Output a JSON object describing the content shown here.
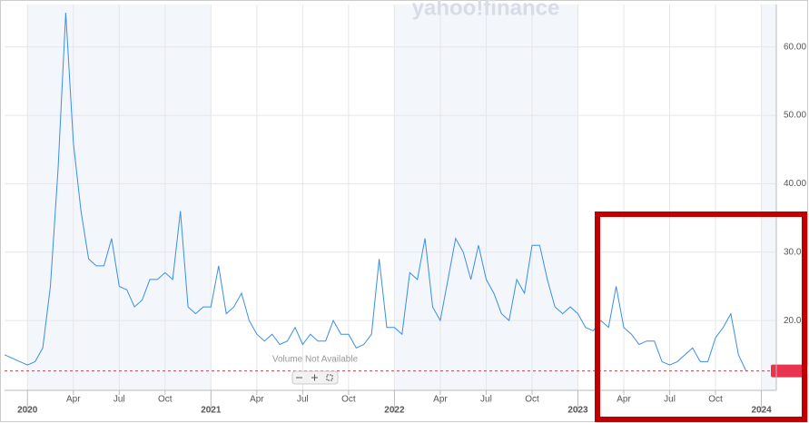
{
  "chart_data": {
    "type": "line",
    "watermark": "yahoo!finance",
    "note": "Volume Not Available",
    "color": "#3a8ee6",
    "categories": [
      null,
      null,
      null,
      "2020",
      null,
      null,
      null,
      null,
      null,
      "Apr",
      null,
      null,
      null,
      null,
      null,
      "Jul",
      null,
      null,
      null,
      null,
      null,
      "Oct",
      null,
      null,
      null,
      null,
      null,
      "2021",
      null,
      null,
      null,
      null,
      null,
      "Apr",
      null,
      null,
      null,
      null,
      null,
      "Jul",
      null,
      null,
      null,
      null,
      null,
      "Oct",
      null,
      null,
      null,
      null,
      null,
      "2022",
      null,
      null,
      null,
      null,
      null,
      "Apr",
      null,
      null,
      null,
      null,
      null,
      "Jul",
      null,
      null,
      null,
      null,
      null,
      "Oct",
      null,
      null,
      null,
      null,
      null,
      "2023",
      null,
      null,
      null,
      null,
      null,
      "Apr",
      null,
      null,
      null,
      null,
      null,
      "Jul",
      null,
      null,
      null,
      null,
      null,
      "Oct",
      null,
      null,
      null,
      null,
      null,
      "2024"
    ],
    "values": [
      15,
      14.5,
      14,
      13.5,
      14,
      16,
      25,
      42,
      65,
      46,
      36,
      29,
      28,
      28,
      32,
      25,
      24.5,
      22,
      23,
      26,
      26,
      27,
      26,
      36,
      22,
      21,
      22,
      22,
      28,
      21,
      22,
      24,
      20,
      18,
      17,
      18,
      16.5,
      17,
      19,
      16.5,
      18,
      17,
      17,
      20,
      18,
      18,
      16,
      16.5,
      18,
      29,
      19,
      19,
      18,
      27,
      26,
      32,
      22,
      20,
      26,
      32,
      30,
      26,
      31,
      26,
      24,
      21,
      20,
      26,
      24,
      31,
      31,
      26,
      22,
      21,
      22,
      21,
      19,
      18.5,
      20,
      19,
      25,
      19,
      18,
      16.5,
      17,
      17,
      14,
      13.5,
      14,
      15,
      16,
      14,
      14,
      17.5,
      19,
      21,
      15,
      12.63,
      null,
      null
    ],
    "last_price": 12.63,
    "ylim": [
      9.8,
      66.2
    ],
    "yticks": [
      {
        "value": 20,
        "label": "20.00"
      },
      {
        "value": 30,
        "label": "30.00"
      },
      {
        "value": 40,
        "label": "40.00"
      },
      {
        "value": 50,
        "label": "50.00"
      },
      {
        "value": 60,
        "label": "60.00"
      }
    ],
    "grid": true
  }
}
